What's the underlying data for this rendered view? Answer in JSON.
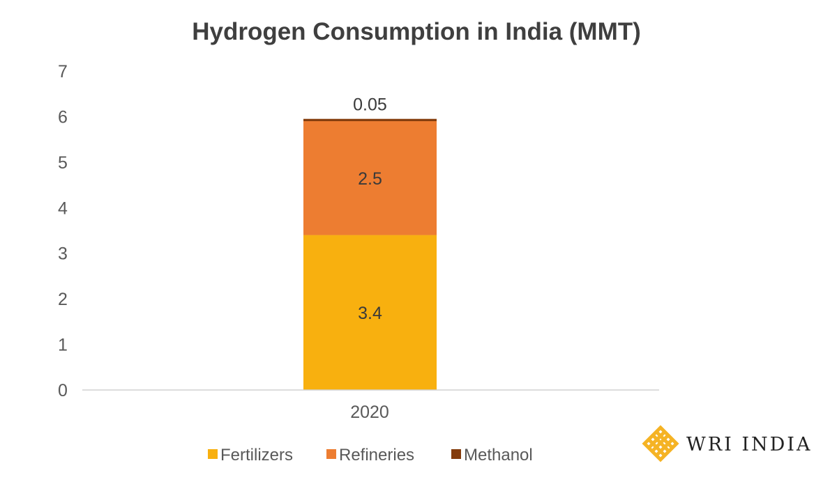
{
  "chart_data": {
    "type": "bar",
    "stacked": true,
    "title": "Hydrogen Consumption in India (MMT)",
    "xlabel": "",
    "ylabel": "",
    "categories": [
      "2020"
    ],
    "ylim": [
      0,
      7
    ],
    "yticks": [
      0,
      1,
      2,
      3,
      4,
      5,
      6,
      7
    ],
    "grid": false,
    "legend_position": "bottom",
    "series": [
      {
        "name": "Fertilizers",
        "values": [
          3.4
        ],
        "labels": [
          "3.4"
        ],
        "color": "#F8B00F"
      },
      {
        "name": "Refineries",
        "values": [
          2.5
        ],
        "labels": [
          "2.5"
        ],
        "color": "#ED7D31"
      },
      {
        "name": "Methanol",
        "values": [
          0.05
        ],
        "labels": [
          "0.05"
        ],
        "color": "#843C0C"
      }
    ]
  },
  "logo": {
    "text": "WRI INDIA",
    "color": "#F5B324"
  }
}
